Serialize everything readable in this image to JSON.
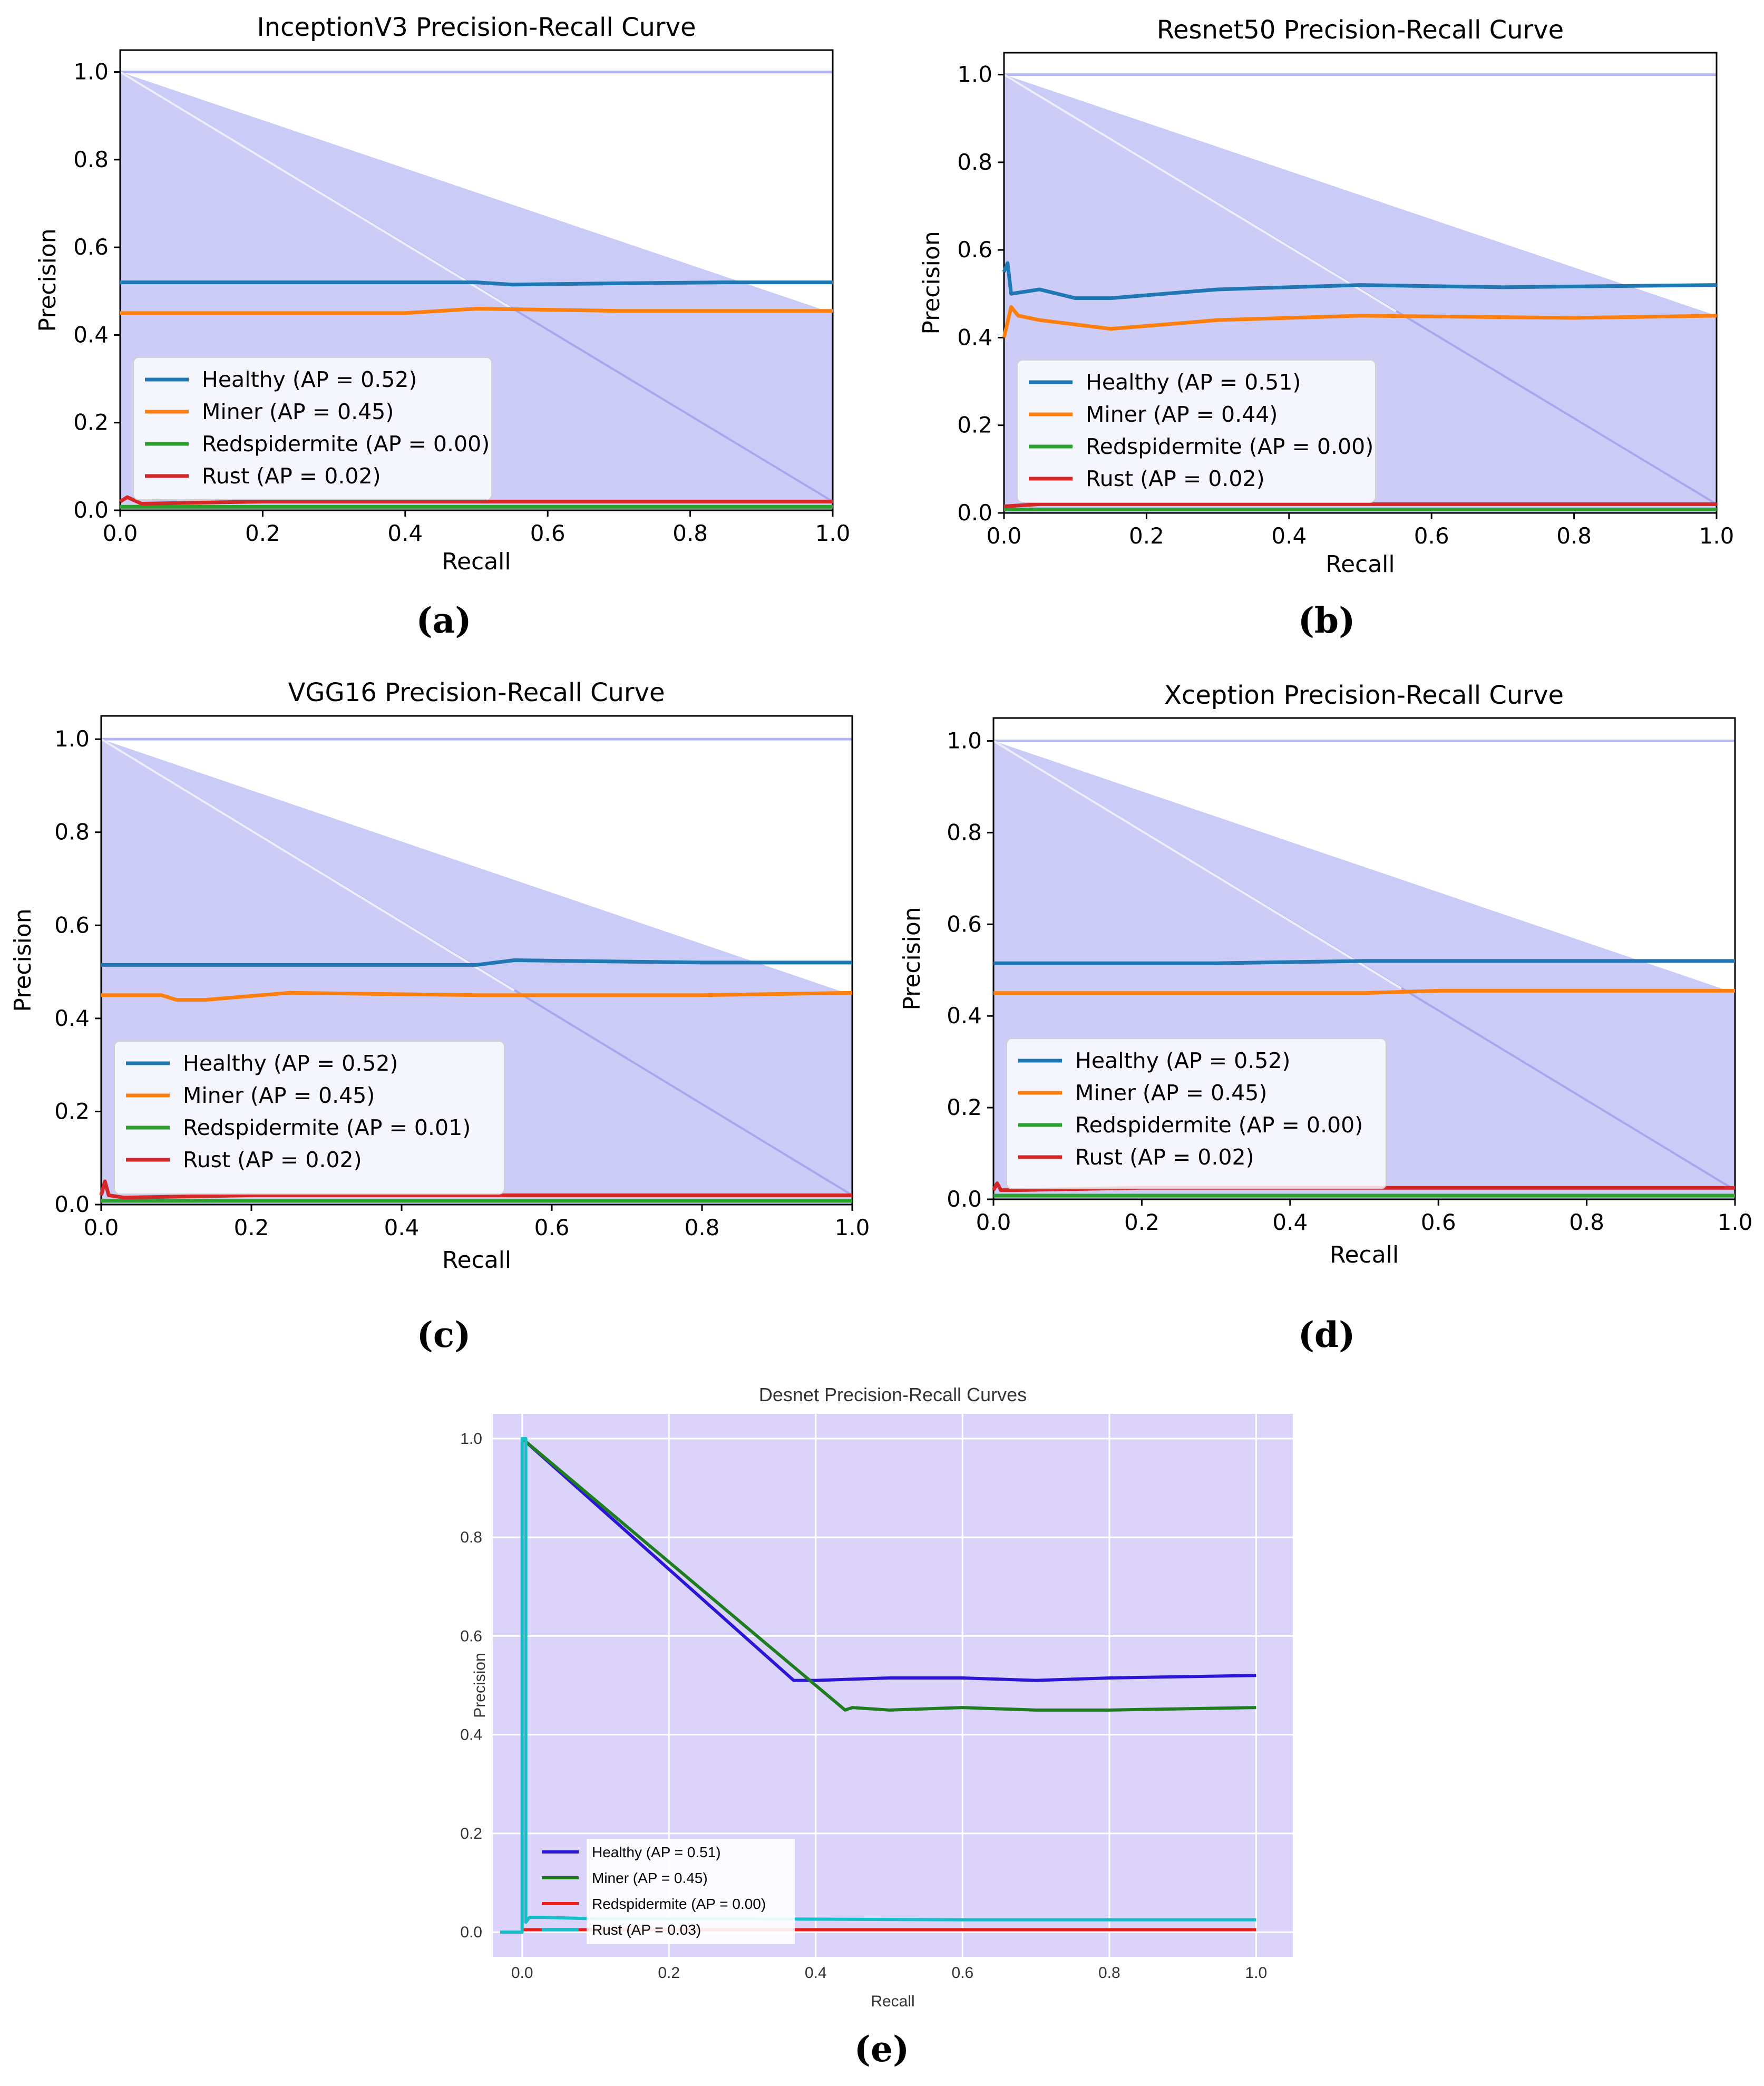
{
  "chart_data": [
    {
      "panel": "(a)",
      "type": "line",
      "title": "InceptionV3 Precision-Recall Curve",
      "xlabel": "Recall",
      "ylabel": "Precision",
      "xlim": [
        0.0,
        1.0
      ],
      "ylim": [
        0.0,
        1.05
      ],
      "xticks": [
        "0.0",
        "0.2",
        "0.4",
        "0.6",
        "0.8",
        "1.0"
      ],
      "yticks": [
        "0.0",
        "0.2",
        "0.4",
        "0.6",
        "0.8",
        "1.0"
      ],
      "legend_position": "lower-left",
      "series": [
        {
          "name": "Healthy (AP = 0.52)",
          "color": "#1f77b4",
          "x": [
            0.0,
            0.3,
            0.5,
            0.55,
            0.7,
            0.85,
            1.0
          ],
          "y": [
            0.52,
            0.52,
            0.52,
            0.515,
            0.518,
            0.52,
            0.52
          ]
        },
        {
          "name": "Miner (AP = 0.45)",
          "color": "#ff7f0e",
          "x": [
            0.0,
            0.4,
            0.5,
            0.7,
            1.0
          ],
          "y": [
            0.45,
            0.45,
            0.46,
            0.455,
            0.455
          ]
        },
        {
          "name": "Redspidermite (AP = 0.00)",
          "color": "#2ca02c",
          "x": [
            0.0,
            1.0
          ],
          "y": [
            0.008,
            0.008
          ]
        },
        {
          "name": "Rust (AP = 0.02)",
          "color": "#d62728",
          "x": [
            0.0,
            0.01,
            0.03,
            0.2,
            1.0
          ],
          "y": [
            0.02,
            0.03,
            0.015,
            0.02,
            0.02
          ]
        }
      ]
    },
    {
      "panel": "(b)",
      "type": "line",
      "title": "Resnet50 Precision-Recall Curve",
      "xlabel": "Recall",
      "ylabel": "Precision",
      "xlim": [
        0.0,
        1.0
      ],
      "ylim": [
        0.0,
        1.05
      ],
      "xticks": [
        "0.0",
        "0.2",
        "0.4",
        "0.6",
        "0.8",
        "1.0"
      ],
      "yticks": [
        "0.0",
        "0.2",
        "0.4",
        "0.6",
        "0.8",
        "1.0"
      ],
      "legend_position": "lower-left",
      "series": [
        {
          "name": "Healthy (AP = 0.51)",
          "color": "#1f77b4",
          "x": [
            0.0,
            0.005,
            0.01,
            0.05,
            0.1,
            0.15,
            0.3,
            0.5,
            0.7,
            1.0
          ],
          "y": [
            0.55,
            0.57,
            0.5,
            0.51,
            0.49,
            0.49,
            0.51,
            0.52,
            0.515,
            0.52
          ]
        },
        {
          "name": "Miner (AP = 0.44)",
          "color": "#ff7f0e",
          "x": [
            0.0,
            0.01,
            0.02,
            0.05,
            0.1,
            0.15,
            0.3,
            0.5,
            0.8,
            1.0
          ],
          "y": [
            0.4,
            0.47,
            0.45,
            0.44,
            0.43,
            0.42,
            0.44,
            0.45,
            0.445,
            0.45
          ]
        },
        {
          "name": "Redspidermite (AP = 0.00)",
          "color": "#2ca02c",
          "x": [
            0.0,
            1.0
          ],
          "y": [
            0.008,
            0.008
          ]
        },
        {
          "name": "Rust (AP = 0.02)",
          "color": "#d62728",
          "x": [
            0.0,
            0.05,
            0.5,
            1.0
          ],
          "y": [
            0.015,
            0.02,
            0.02,
            0.02
          ]
        }
      ]
    },
    {
      "panel": "(c)",
      "type": "line",
      "title": "VGG16  Precision-Recall Curve",
      "xlabel": "Recall",
      "ylabel": "Precision",
      "xlim": [
        0.0,
        1.0
      ],
      "ylim": [
        0.0,
        1.05
      ],
      "xticks": [
        "0.0",
        "0.2",
        "0.4",
        "0.6",
        "0.8",
        "1.0"
      ],
      "yticks": [
        "0.0",
        "0.2",
        "0.4",
        "0.6",
        "0.8",
        "1.0"
      ],
      "legend_position": "lower-left",
      "series": [
        {
          "name": "Healthy (AP = 0.52)",
          "color": "#1f77b4",
          "x": [
            0.0,
            0.3,
            0.5,
            0.55,
            0.8,
            1.0
          ],
          "y": [
            0.515,
            0.515,
            0.515,
            0.525,
            0.52,
            0.52
          ]
        },
        {
          "name": "Miner (AP = 0.45)",
          "color": "#ff7f0e",
          "x": [
            0.0,
            0.08,
            0.1,
            0.14,
            0.25,
            0.5,
            0.8,
            1.0
          ],
          "y": [
            0.45,
            0.45,
            0.44,
            0.44,
            0.455,
            0.45,
            0.45,
            0.455
          ]
        },
        {
          "name": "Redspidermite (AP = 0.01)",
          "color": "#2ca02c",
          "x": [
            0.0,
            1.0
          ],
          "y": [
            0.008,
            0.008
          ]
        },
        {
          "name": "Rust (AP = 0.02)",
          "color": "#d62728",
          "x": [
            0.0,
            0.005,
            0.01,
            0.03,
            0.2,
            1.0
          ],
          "y": [
            0.02,
            0.05,
            0.02,
            0.015,
            0.02,
            0.02
          ]
        }
      ]
    },
    {
      "panel": "(d)",
      "type": "line",
      "title": "Xception Precision-Recall Curve",
      "xlabel": "Recall",
      "ylabel": "Precision",
      "xlim": [
        0.0,
        1.0
      ],
      "ylim": [
        0.0,
        1.05
      ],
      "xticks": [
        "0.0",
        "0.2",
        "0.4",
        "0.6",
        "0.8",
        "1.0"
      ],
      "yticks": [
        "0.0",
        "0.2",
        "0.4",
        "0.6",
        "0.8",
        "1.0"
      ],
      "legend_position": "lower-left",
      "series": [
        {
          "name": "Healthy (AP = 0.52)",
          "color": "#1f77b4",
          "x": [
            0.0,
            0.3,
            0.5,
            0.7,
            1.0
          ],
          "y": [
            0.515,
            0.515,
            0.52,
            0.52,
            0.52
          ]
        },
        {
          "name": "Miner (AP = 0.45)",
          "color": "#ff7f0e",
          "x": [
            0.0,
            0.4,
            0.5,
            0.6,
            0.8,
            1.0
          ],
          "y": [
            0.45,
            0.45,
            0.45,
            0.455,
            0.455,
            0.455
          ]
        },
        {
          "name": "Redspidermite (AP = 0.00)",
          "color": "#2ca02c",
          "x": [
            0.0,
            1.0
          ],
          "y": [
            0.008,
            0.008
          ]
        },
        {
          "name": "Rust (AP = 0.02)",
          "color": "#d62728",
          "x": [
            0.0,
            0.005,
            0.01,
            0.03,
            0.2,
            1.0
          ],
          "y": [
            0.02,
            0.035,
            0.02,
            0.02,
            0.025,
            0.025
          ]
        }
      ]
    },
    {
      "panel": "(e)",
      "type": "line",
      "title": "Desnet Precision-Recall Curves",
      "xlabel": "Recall",
      "ylabel": "Precision",
      "xlim": [
        -0.04,
        1.05
      ],
      "ylim": [
        -0.05,
        1.05
      ],
      "xticks": [
        "0.0",
        "0.2",
        "0.4",
        "0.6",
        "0.8",
        "1.0"
      ],
      "yticks": [
        "0.0",
        "0.2",
        "0.4",
        "0.6",
        "0.8",
        "1.0"
      ],
      "grid": true,
      "legend_position": "lower-left",
      "series": [
        {
          "name": "Healthy (AP = 0.51)",
          "color": "#2b16d6",
          "x": [
            0.0,
            0.37,
            0.4,
            0.5,
            0.6,
            0.7,
            0.8,
            1.0
          ],
          "y": [
            1.0,
            0.51,
            0.51,
            0.515,
            0.515,
            0.51,
            0.515,
            0.52
          ]
        },
        {
          "name": "Miner (AP = 0.45)",
          "color": "#1e7d1e",
          "x": [
            0.0,
            0.44,
            0.45,
            0.5,
            0.6,
            0.7,
            0.8,
            1.0
          ],
          "y": [
            1.0,
            0.45,
            0.455,
            0.45,
            0.455,
            0.45,
            0.45,
            0.455
          ]
        },
        {
          "name": "Redspidermite (AP = 0.00)",
          "color": "#e8201e",
          "x": [
            0.0,
            1.0
          ],
          "y": [
            0.005,
            0.005
          ]
        },
        {
          "name": "Rust (AP = 0.03)",
          "color": "#17bfc9",
          "x": [
            -0.03,
            0.0,
            0.0,
            0.005,
            0.005,
            0.01,
            0.03,
            0.1,
            0.3,
            0.6,
            1.0
          ],
          "y": [
            0.0,
            0.0,
            1.0,
            1.0,
            0.02,
            0.03,
            0.03,
            0.027,
            0.027,
            0.025,
            0.025
          ]
        }
      ]
    }
  ],
  "captions": [
    "(a)",
    "(b)",
    "(c)",
    "(d)",
    "(e)"
  ]
}
